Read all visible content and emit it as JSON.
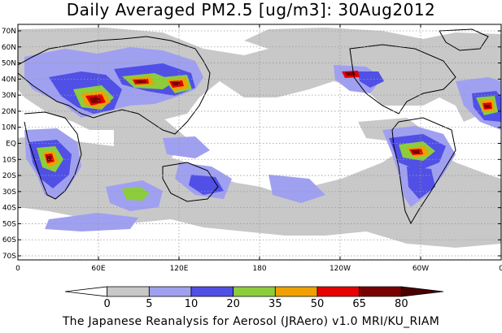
{
  "title": "Daily Averaged PM2.5 [ug/m3]: 30Aug2012",
  "footer": "The Japanese Reanalysis for Aerosol (JRAero) v1.0 MRI/KU_RIAM",
  "map": {
    "lat_labels": [
      "70N",
      "60N",
      "50N",
      "40N",
      "30N",
      "20N",
      "10N",
      "EQ",
      "10S",
      "20S",
      "30S",
      "40S",
      "50S",
      "60S",
      "70S"
    ],
    "lon_labels": [
      "0",
      "60E",
      "120E",
      "180",
      "120W",
      "60W",
      "0"
    ]
  },
  "legend": {
    "ticks": [
      "0",
      "5",
      "10",
      "20",
      "35",
      "50",
      "65",
      "80"
    ],
    "colors": [
      "#ffffff",
      "#c8c8c8",
      "#a0a0f0",
      "#5050e6",
      "#8ccd3c",
      "#f0a000",
      "#e60000",
      "#780000",
      "#4a0000"
    ]
  }
}
